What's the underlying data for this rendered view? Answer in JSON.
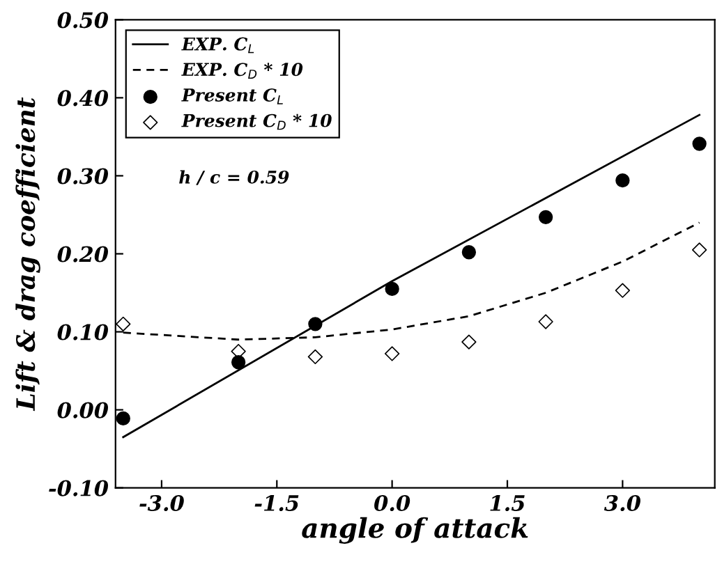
{
  "chart_data": {
    "type": "scatter",
    "xlabel": "angle of attack",
    "ylabel": "Lift & drag coefficient",
    "xlim": [
      -3.6,
      4.2
    ],
    "ylim": [
      -0.1,
      0.5
    ],
    "xticks": [
      {
        "value": -3,
        "label": "-3.0"
      },
      {
        "value": -1.5,
        "label": "-1.5"
      },
      {
        "value": 0,
        "label": "0.0"
      },
      {
        "value": 1.5,
        "label": "1.5"
      },
      {
        "value": 3,
        "label": "3.0"
      }
    ],
    "yticks": [
      {
        "value": -0.1,
        "label": "-0.10"
      },
      {
        "value": 0,
        "label": "0.00"
      },
      {
        "value": 0.1,
        "label": "0.10"
      },
      {
        "value": 0.2,
        "label": "0.20"
      },
      {
        "value": 0.3,
        "label": "0.30"
      },
      {
        "value": 0.4,
        "label": "0.40"
      },
      {
        "value": 0.5,
        "label": "0.50"
      }
    ],
    "grid": false,
    "legend": "top left",
    "annotations": [
      "h / c = 0.59"
    ],
    "series": [
      {
        "name": "EXP. C$_{L}$",
        "type": "line",
        "line_style": "solid",
        "marker": "none",
        "color": "#000000",
        "x": [
          -3.5,
          0,
          4
        ],
        "values": [
          -0.035,
          0.165,
          0.378
        ]
      },
      {
        "name": "EXP. C$_{D}$ * 10",
        "type": "line",
        "line_style": "dashed",
        "marker": "none",
        "color": "#000000",
        "x": [
          -3.5,
          -2,
          -1,
          0,
          1,
          2,
          3,
          4
        ],
        "values": [
          0.099,
          0.09,
          0.093,
          0.103,
          0.12,
          0.15,
          0.19,
          0.24
        ]
      },
      {
        "name": "Present C$_{L}$",
        "marker": "circle",
        "color": "#000000",
        "x": [
          -3.5,
          -2,
          -1,
          0,
          1,
          2,
          3,
          4
        ],
        "values": [
          -0.011,
          0.061,
          0.11,
          0.155,
          0.202,
          0.247,
          0.294,
          0.341
        ]
      },
      {
        "name": "Present C$_{D}$ * 10",
        "marker": "diamond",
        "color": "#000000",
        "x": [
          -3.5,
          -2,
          -1,
          0,
          1,
          2,
          3,
          4
        ],
        "values": [
          0.11,
          0.075,
          0.068,
          0.072,
          0.087,
          0.113,
          0.153,
          0.205
        ]
      }
    ]
  }
}
